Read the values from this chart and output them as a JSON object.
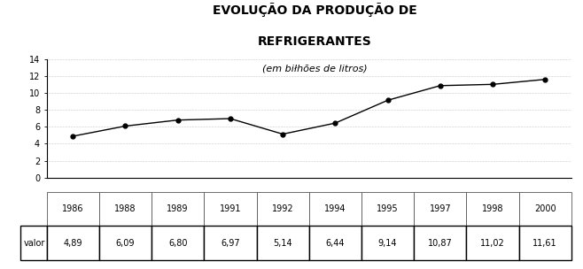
{
  "title_line1": "EVOLUÇÃO DA PRODUÇÃO DE",
  "title_line2": "REFRIGERANTES",
  "subtitle": "(em biłhões de litros)",
  "year_labels": [
    "1986",
    "1988",
    "1989",
    "1991",
    "1992",
    "1994",
    "1995",
    "1997",
    "1998",
    "2000"
  ],
  "value_labels": [
    "4,89",
    "6,09",
    "6,80",
    "6,97",
    "5,14",
    "6,44",
    "9,14",
    "10,87",
    "11,02",
    "11,61"
  ],
  "x_positions": [
    0,
    1,
    2,
    3,
    4,
    5,
    6,
    7,
    8,
    9
  ],
  "values": [
    4.89,
    6.09,
    6.8,
    6.97,
    5.14,
    6.44,
    9.14,
    10.87,
    11.02,
    11.61
  ],
  "row_header": "valor",
  "ylim": [
    0,
    14
  ],
  "yticks": [
    0,
    2,
    4,
    6,
    8,
    10,
    12,
    14
  ],
  "bg_color": "#ffffff",
  "line_color": "#000000",
  "marker_color": "#000000",
  "grid_color": "#999999",
  "title_fontsize": 10,
  "subtitle_fontsize": 8,
  "tick_fontsize": 7,
  "table_fontsize": 7
}
